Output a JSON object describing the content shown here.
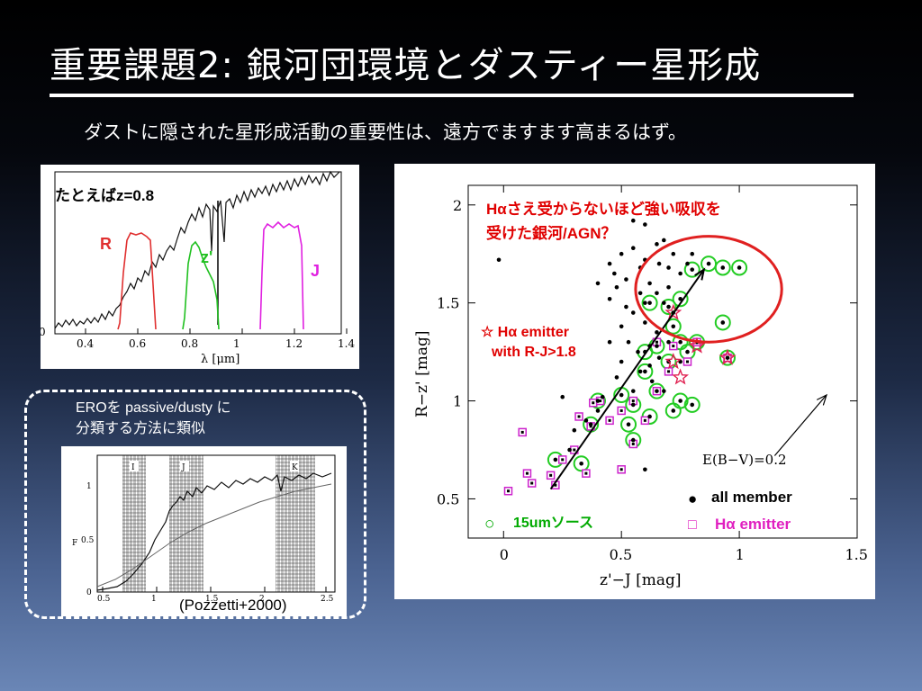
{
  "slide": {
    "title": "重要課題2: 銀河団環境とダスティー星形成",
    "subtitle": "ダストに隠された星形成活動の重要性は、遠方でますます高まるはず。"
  },
  "filter_panel": {
    "example_label": "たとえばz=0.8",
    "filters": [
      {
        "name": "R",
        "color": "#e03030"
      },
      {
        "name": "z'",
        "color": "#20c020"
      },
      {
        "name": "J",
        "color": "#e020e0"
      }
    ],
    "xlabel": "λ [μm]",
    "x_ticks": [
      "0.4",
      "0.6",
      "0.8",
      "1",
      "1.2",
      "1.4"
    ],
    "y_tick": "0"
  },
  "ero_caption": {
    "line1": "EROを passive/dusty に",
    "line2": "分類する方法に類似"
  },
  "pozzetti_panel": {
    "credit": "(Pozzetti+2000)",
    "band_labels": [
      "I",
      "J",
      "K"
    ],
    "y_ticks": [
      "1",
      "0.5",
      "0"
    ],
    "x_ticks": [
      "0.5",
      "1",
      "1.5",
      "2",
      "2.5"
    ],
    "ylabel": "F"
  },
  "chart_data": {
    "type": "scatter",
    "xlabel": "z'−J [mag]",
    "ylabel": "R−z' [mag]",
    "xlim": [
      -0.15,
      1.5
    ],
    "ylim": [
      0.3,
      2.1
    ],
    "x_ticks": [
      "0",
      "0.5",
      "1",
      "1.5"
    ],
    "y_ticks": [
      "0.5",
      "1",
      "1.5",
      "2"
    ],
    "annotations": {
      "absorption_question_line1": "Hαさえ受からないほど強い吸収を",
      "absorption_question_line2": "受けた銀河/AGN？",
      "emitter_note_line1": "☆ Hα emitter",
      "emitter_note_line2": "with R-J>1.8",
      "reddening_vector": "E(B−V)=0.2"
    },
    "legend": [
      {
        "symbol": "●",
        "label": "all member"
      },
      {
        "symbol": "○",
        "label": "15umソース"
      },
      {
        "symbol": "□",
        "label": "Hα emitter"
      }
    ],
    "members": [
      [
        0.5,
        1.75
      ],
      [
        0.55,
        1.78
      ],
      [
        0.6,
        1.72
      ],
      [
        0.65,
        1.8
      ],
      [
        0.7,
        1.68
      ],
      [
        0.52,
        1.62
      ],
      [
        0.58,
        1.55
      ],
      [
        0.62,
        1.6
      ],
      [
        0.68,
        1.5
      ],
      [
        0.48,
        1.58
      ],
      [
        0.45,
        1.52
      ],
      [
        0.55,
        1.45
      ],
      [
        0.6,
        1.4
      ],
      [
        0.5,
        1.38
      ],
      [
        0.65,
        1.35
      ],
      [
        0.72,
        1.45
      ],
      [
        0.53,
        1.3
      ],
      [
        0.57,
        1.25
      ],
      [
        0.62,
        1.28
      ],
      [
        0.66,
        1.22
      ],
      [
        0.7,
        1.3
      ],
      [
        0.75,
        1.2
      ],
      [
        0.58,
        1.15
      ],
      [
        0.63,
        1.1
      ],
      [
        0.68,
        1.05
      ],
      [
        0.55,
        1.05
      ],
      [
        0.48,
        1.12
      ],
      [
        0.42,
        1.02
      ],
      [
        0.4,
        0.95
      ],
      [
        0.35,
        0.9
      ],
      [
        0.3,
        0.85
      ],
      [
        0.28,
        0.75
      ],
      [
        0.75,
        1.65
      ],
      [
        0.72,
        1.75
      ],
      [
        0.78,
        1.7
      ],
      [
        0.68,
        1.82
      ],
      [
        0.45,
        1.7
      ],
      [
        0.4,
        1.6
      ],
      [
        0.6,
        1.9
      ],
      [
        0.55,
        1.92
      ],
      [
        -0.02,
        1.72
      ],
      [
        0.25,
        1.02
      ],
      [
        0.6,
        0.65
      ],
      [
        0.62,
        1.18
      ],
      [
        0.5,
        1.2
      ],
      [
        0.45,
        1.3
      ],
      [
        0.65,
        1.55
      ],
      [
        0.7,
        1.58
      ],
      [
        0.8,
        1.75
      ],
      [
        0.52,
        1.48
      ],
      [
        0.6,
        1.5
      ],
      [
        0.66,
        1.7
      ],
      [
        0.58,
        1.68
      ],
      [
        0.47,
        1.65
      ]
    ],
    "sources_15um": [
      [
        0.8,
        1.67
      ],
      [
        0.87,
        1.7
      ],
      [
        0.93,
        1.68
      ],
      [
        1.0,
        1.68
      ],
      [
        0.93,
        1.4
      ],
      [
        0.62,
        1.5
      ],
      [
        0.7,
        1.48
      ],
      [
        0.75,
        1.52
      ],
      [
        0.72,
        1.38
      ],
      [
        0.65,
        1.28
      ],
      [
        0.75,
        1.3
      ],
      [
        0.82,
        1.3
      ],
      [
        0.7,
        1.2
      ],
      [
        0.78,
        1.25
      ],
      [
        0.6,
        1.15
      ],
      [
        0.65,
        1.05
      ],
      [
        0.75,
        1.0
      ],
      [
        0.8,
        0.98
      ],
      [
        0.72,
        0.95
      ],
      [
        0.62,
        0.92
      ],
      [
        0.55,
        0.98
      ],
      [
        0.5,
        1.03
      ],
      [
        0.4,
        1.0
      ],
      [
        0.37,
        0.88
      ],
      [
        0.53,
        0.88
      ],
      [
        0.55,
        0.8
      ],
      [
        0.33,
        0.68
      ],
      [
        0.22,
        0.7
      ],
      [
        0.95,
        1.22
      ],
      [
        0.6,
        1.25
      ]
    ],
    "halpha_emitters": [
      [
        0.08,
        0.84
      ],
      [
        0.1,
        0.63
      ],
      [
        0.12,
        0.58
      ],
      [
        0.02,
        0.54
      ],
      [
        0.2,
        0.62
      ],
      [
        0.22,
        0.57
      ],
      [
        0.25,
        0.7
      ],
      [
        0.3,
        0.75
      ],
      [
        0.35,
        0.63
      ],
      [
        0.37,
        0.87
      ],
      [
        0.32,
        0.92
      ],
      [
        0.38,
        0.99
      ],
      [
        0.41,
        1.0
      ],
      [
        0.45,
        0.9
      ],
      [
        0.5,
        0.95
      ],
      [
        0.55,
        1.0
      ],
      [
        0.6,
        0.9
      ],
      [
        0.65,
        1.05
      ],
      [
        0.7,
        1.15
      ],
      [
        0.72,
        1.28
      ],
      [
        0.78,
        1.2
      ],
      [
        0.82,
        1.3
      ],
      [
        0.95,
        1.22
      ],
      [
        0.65,
        1.3
      ],
      [
        0.55,
        0.78
      ],
      [
        0.5,
        0.65
      ]
    ],
    "halpha_red_stars": [
      [
        0.72,
        1.2
      ],
      [
        0.75,
        1.12
      ],
      [
        0.72,
        1.45
      ],
      [
        0.82,
        1.28
      ],
      [
        0.95,
        1.22
      ]
    ],
    "trend_arrow": {
      "from": [
        0.2,
        0.55
      ],
      "to": [
        0.85,
        1.67
      ]
    },
    "reddening_arrow": {
      "from": [
        1.15,
        0.72
      ],
      "to": [
        1.37,
        1.03
      ]
    },
    "highlight_ellipse": {
      "cx": 0.87,
      "cy": 1.57,
      "rx": 0.31,
      "ry": 0.27
    }
  }
}
